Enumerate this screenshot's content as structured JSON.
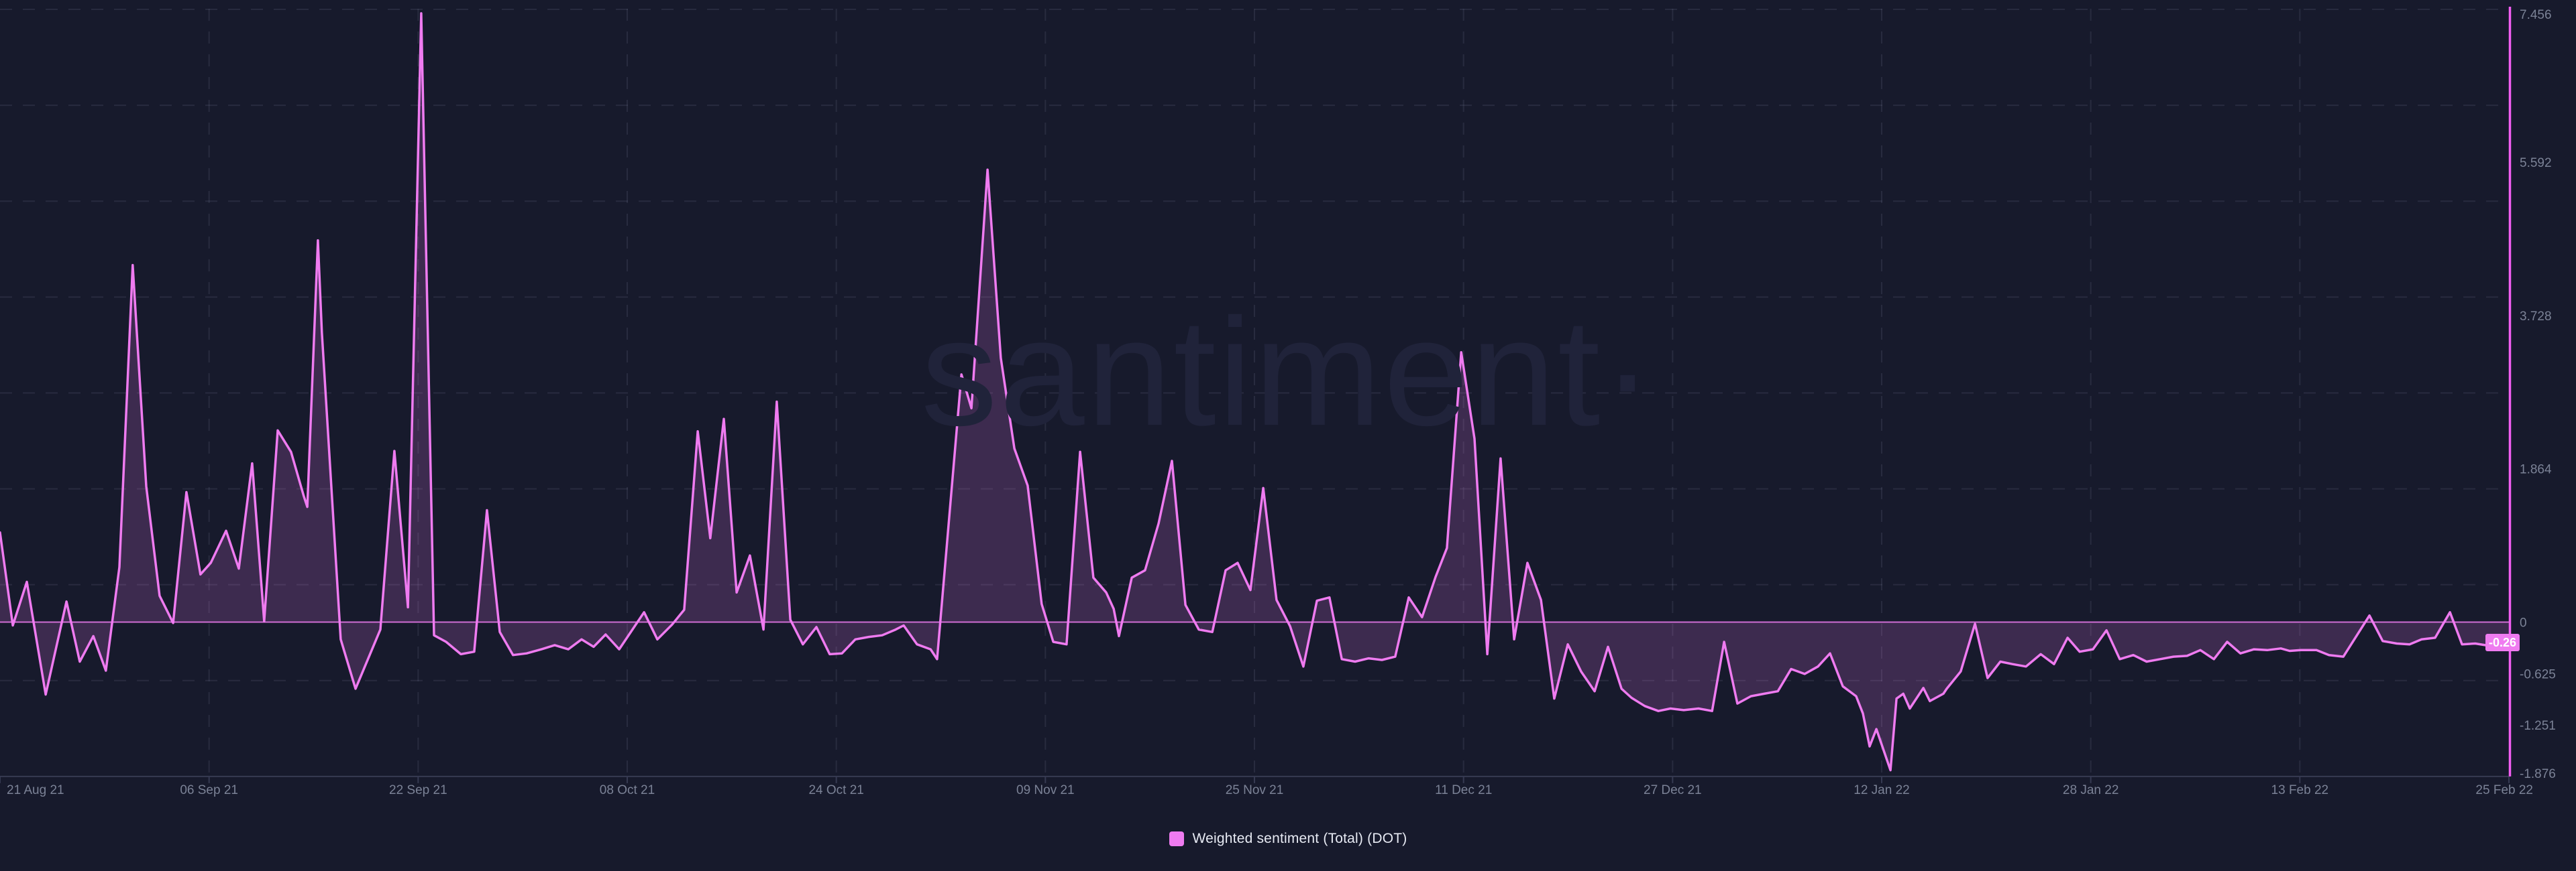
{
  "page": {
    "background_color": "#171a2c"
  },
  "watermark": {
    "text": "santiment·"
  },
  "legend": {
    "label": "Weighted sentiment (Total) (DOT)",
    "swatch_color": "#ef7bf0"
  },
  "badge": {
    "value": "-0.26",
    "background_color": "#ef7bf0",
    "text_color": "#ffffff"
  },
  "chart_data": {
    "type": "area",
    "title": "Weighted sentiment (Total) (DOT)",
    "legend_position": "bottom-center",
    "grid": {
      "dashed": true,
      "horizontal_lines": 8,
      "vertical_on_ticks": true
    },
    "colors": {
      "line": "#ef7bf0",
      "fill": "rgba(239,123,240,0.18)",
      "zero_line": "rgba(239,123,240,0.85)",
      "right_border": "#f25ef2",
      "axis": "#363a52",
      "labels": "#7b8296",
      "grid": "rgba(154,163,192,0.13)"
    },
    "x_tick_labels": [
      "21 Aug 21",
      "06 Sep 21",
      "22 Sep 21",
      "08 Oct 21",
      "24 Oct 21",
      "09 Nov 21",
      "25 Nov 21",
      "11 Dec 21",
      "27 Dec 21",
      "12 Jan 22",
      "28 Jan 22",
      "13 Feb 22",
      "25 Feb 22"
    ],
    "y_tick_labels": [
      {
        "label": "7.456",
        "value": 7.456
      },
      {
        "label": "5.592",
        "value": 5.592
      },
      {
        "label": "3.728",
        "value": 3.728
      },
      {
        "label": "1.864",
        "value": 1.864
      },
      {
        "label": "0",
        "value": 0
      },
      {
        "label": "-0.625",
        "value": -0.625
      },
      {
        "label": "-1.251",
        "value": -1.251
      },
      {
        "label": "-1.876",
        "value": -1.876
      }
    ],
    "ylim": [
      -1.876,
      7.456
    ],
    "baseline": 0,
    "last_value": -0.26,
    "series": [
      {
        "name": "Weighted sentiment (Total) (DOT)",
        "color": "#ef7bf0",
        "points": [
          [
            0.0,
            1.09
          ],
          [
            0.0051,
            -0.04
          ],
          [
            0.0107,
            0.49
          ],
          [
            0.0182,
            -0.88
          ],
          [
            0.0265,
            0.25
          ],
          [
            0.0318,
            -0.48
          ],
          [
            0.0372,
            -0.17
          ],
          [
            0.0422,
            -0.59
          ],
          [
            0.0476,
            0.67
          ],
          [
            0.0529,
            4.34
          ],
          [
            0.0583,
            1.65
          ],
          [
            0.0636,
            0.32
          ],
          [
            0.069,
            -0.01
          ],
          [
            0.0743,
            1.58
          ],
          [
            0.0799,
            0.58
          ],
          [
            0.084,
            0.72
          ],
          [
            0.0901,
            1.11
          ],
          [
            0.0952,
            0.65
          ],
          [
            0.1005,
            1.93
          ],
          [
            0.1053,
            0.01
          ],
          [
            0.1107,
            2.33
          ],
          [
            0.116,
            2.07
          ],
          [
            0.1211,
            1.53
          ],
          [
            0.1225,
            1.4
          ],
          [
            0.1267,
            4.64
          ],
          [
            0.1283,
            3.52
          ],
          [
            0.1358,
            -0.21
          ],
          [
            0.1417,
            -0.81
          ],
          [
            0.1516,
            -0.09
          ],
          [
            0.1572,
            2.08
          ],
          [
            0.1626,
            0.18
          ],
          [
            0.1679,
            7.4
          ],
          [
            0.173,
            -0.16
          ],
          [
            0.1778,
            -0.24
          ],
          [
            0.1837,
            -0.39
          ],
          [
            0.189,
            -0.36
          ],
          [
            0.1941,
            1.36
          ],
          [
            0.1992,
            -0.12
          ],
          [
            0.2045,
            -0.4
          ],
          [
            0.2099,
            -0.38
          ],
          [
            0.2158,
            -0.33
          ],
          [
            0.2211,
            -0.28
          ],
          [
            0.2265,
            -0.33
          ],
          [
            0.2318,
            -0.21
          ],
          [
            0.2366,
            -0.3
          ],
          [
            0.2414,
            -0.15
          ],
          [
            0.2468,
            -0.33
          ],
          [
            0.2567,
            0.12
          ],
          [
            0.262,
            -0.21
          ],
          [
            0.2679,
            -0.03
          ],
          [
            0.2727,
            0.15
          ],
          [
            0.2781,
            2.32
          ],
          [
            0.2831,
            1.02
          ],
          [
            0.2885,
            2.47
          ],
          [
            0.2936,
            0.36
          ],
          [
            0.2989,
            0.81
          ],
          [
            0.3043,
            -0.09
          ],
          [
            0.3096,
            2.68
          ],
          [
            0.315,
            0.03
          ],
          [
            0.32,
            -0.27
          ],
          [
            0.3254,
            -0.06
          ],
          [
            0.3307,
            -0.39
          ],
          [
            0.3356,
            -0.38
          ],
          [
            0.3409,
            -0.21
          ],
          [
            0.3463,
            -0.18
          ],
          [
            0.3516,
            -0.16
          ],
          [
            0.357,
            -0.09
          ],
          [
            0.3602,
            -0.04
          ],
          [
            0.3655,
            -0.27
          ],
          [
            0.3709,
            -0.33
          ],
          [
            0.3735,
            -0.45
          ],
          [
            0.3832,
            3.01
          ],
          [
            0.3872,
            2.6
          ],
          [
            0.3936,
            5.5
          ],
          [
            0.3989,
            3.21
          ],
          [
            0.4043,
            2.11
          ],
          [
            0.4096,
            1.66
          ],
          [
            0.4152,
            0.22
          ],
          [
            0.4198,
            -0.24
          ],
          [
            0.4251,
            -0.27
          ],
          [
            0.4305,
            2.07
          ],
          [
            0.4358,
            0.54
          ],
          [
            0.4409,
            0.36
          ],
          [
            0.4439,
            0.16
          ],
          [
            0.446,
            -0.17
          ],
          [
            0.4511,
            0.54
          ],
          [
            0.4564,
            0.63
          ],
          [
            0.4618,
            1.2
          ],
          [
            0.4671,
            1.96
          ],
          [
            0.4725,
            0.21
          ],
          [
            0.4778,
            -0.09
          ],
          [
            0.4832,
            -0.12
          ],
          [
            0.4885,
            0.63
          ],
          [
            0.4933,
            0.72
          ],
          [
            0.4984,
            0.39
          ],
          [
            0.5035,
            1.63
          ],
          [
            0.5088,
            0.27
          ],
          [
            0.5142,
            -0.05
          ],
          [
            0.5195,
            -0.54
          ],
          [
            0.5249,
            0.26
          ],
          [
            0.5299,
            0.3
          ],
          [
            0.5348,
            -0.45
          ],
          [
            0.5401,
            -0.48
          ],
          [
            0.5455,
            -0.44
          ],
          [
            0.5508,
            -0.46
          ],
          [
            0.5561,
            -0.42
          ],
          [
            0.5615,
            0.3
          ],
          [
            0.5668,
            0.06
          ],
          [
            0.5722,
            0.55
          ],
          [
            0.5767,
            0.9
          ],
          [
            0.5824,
            3.28
          ],
          [
            0.5877,
            2.23
          ],
          [
            0.5928,
            -0.39
          ],
          [
            0.5981,
            1.99
          ],
          [
            0.6035,
            -0.21
          ],
          [
            0.6088,
            0.72
          ],
          [
            0.6142,
            0.27
          ],
          [
            0.6195,
            -0.93
          ],
          [
            0.6249,
            -0.27
          ],
          [
            0.6302,
            -0.6
          ],
          [
            0.6356,
            -0.84
          ],
          [
            0.6409,
            -0.3
          ],
          [
            0.6463,
            -0.81
          ],
          [
            0.6503,
            -0.92
          ],
          [
            0.6556,
            -1.02
          ],
          [
            0.661,
            -1.08
          ],
          [
            0.6658,
            -1.05
          ],
          [
            0.6711,
            -1.07
          ],
          [
            0.677,
            -1.05
          ],
          [
            0.6824,
            -1.08
          ],
          [
            0.6872,
            -0.24
          ],
          [
            0.6925,
            -0.99
          ],
          [
            0.6979,
            -0.9
          ],
          [
            0.7032,
            -0.87
          ],
          [
            0.7086,
            -0.84
          ],
          [
            0.7139,
            -0.57
          ],
          [
            0.7193,
            -0.63
          ],
          [
            0.7246,
            -0.54
          ],
          [
            0.7294,
            -0.38
          ],
          [
            0.7345,
            -0.78
          ],
          [
            0.7398,
            -0.9
          ],
          [
            0.7425,
            -1.11
          ],
          [
            0.7452,
            -1.51
          ],
          [
            0.7479,
            -1.3
          ],
          [
            0.7535,
            -1.8
          ],
          [
            0.7559,
            -0.93
          ],
          [
            0.7586,
            -0.87
          ],
          [
            0.7612,
            -1.05
          ],
          [
            0.7666,
            -0.8
          ],
          [
            0.7692,
            -0.96
          ],
          [
            0.7746,
            -0.87
          ],
          [
            0.7759,
            -0.81
          ],
          [
            0.7815,
            -0.6
          ],
          [
            0.7872,
            -0.02
          ],
          [
            0.7922,
            -0.68
          ],
          [
            0.7973,
            -0.48
          ],
          [
            0.8021,
            -0.51
          ],
          [
            0.8075,
            -0.54
          ],
          [
            0.8134,
            -0.39
          ],
          [
            0.8187,
            -0.51
          ],
          [
            0.8241,
            -0.19
          ],
          [
            0.8289,
            -0.36
          ],
          [
            0.8342,
            -0.33
          ],
          [
            0.8396,
            -0.1
          ],
          [
            0.8449,
            -0.45
          ],
          [
            0.8503,
            -0.4
          ],
          [
            0.8556,
            -0.48
          ],
          [
            0.861,
            -0.45
          ],
          [
            0.8663,
            -0.42
          ],
          [
            0.8717,
            -0.41
          ],
          [
            0.877,
            -0.34
          ],
          [
            0.8824,
            -0.45
          ],
          [
            0.8877,
            -0.24
          ],
          [
            0.893,
            -0.38
          ],
          [
            0.8984,
            -0.33
          ],
          [
            0.9037,
            -0.34
          ],
          [
            0.9091,
            -0.32
          ],
          [
            0.9126,
            -0.35
          ],
          [
            0.9171,
            -0.34
          ],
          [
            0.9233,
            -0.34
          ],
          [
            0.9283,
            -0.4
          ],
          [
            0.934,
            -0.42
          ],
          [
            0.9444,
            0.08
          ],
          [
            0.9497,
            -0.23
          ],
          [
            0.9553,
            -0.26
          ],
          [
            0.9604,
            -0.27
          ],
          [
            0.9652,
            -0.21
          ],
          [
            0.9706,
            -0.19
          ],
          [
            0.9765,
            0.12
          ],
          [
            0.9813,
            -0.27
          ],
          [
            0.9866,
            -0.26
          ],
          [
            0.9947,
            -0.3
          ],
          [
            1.0,
            -0.26
          ]
        ]
      }
    ]
  }
}
